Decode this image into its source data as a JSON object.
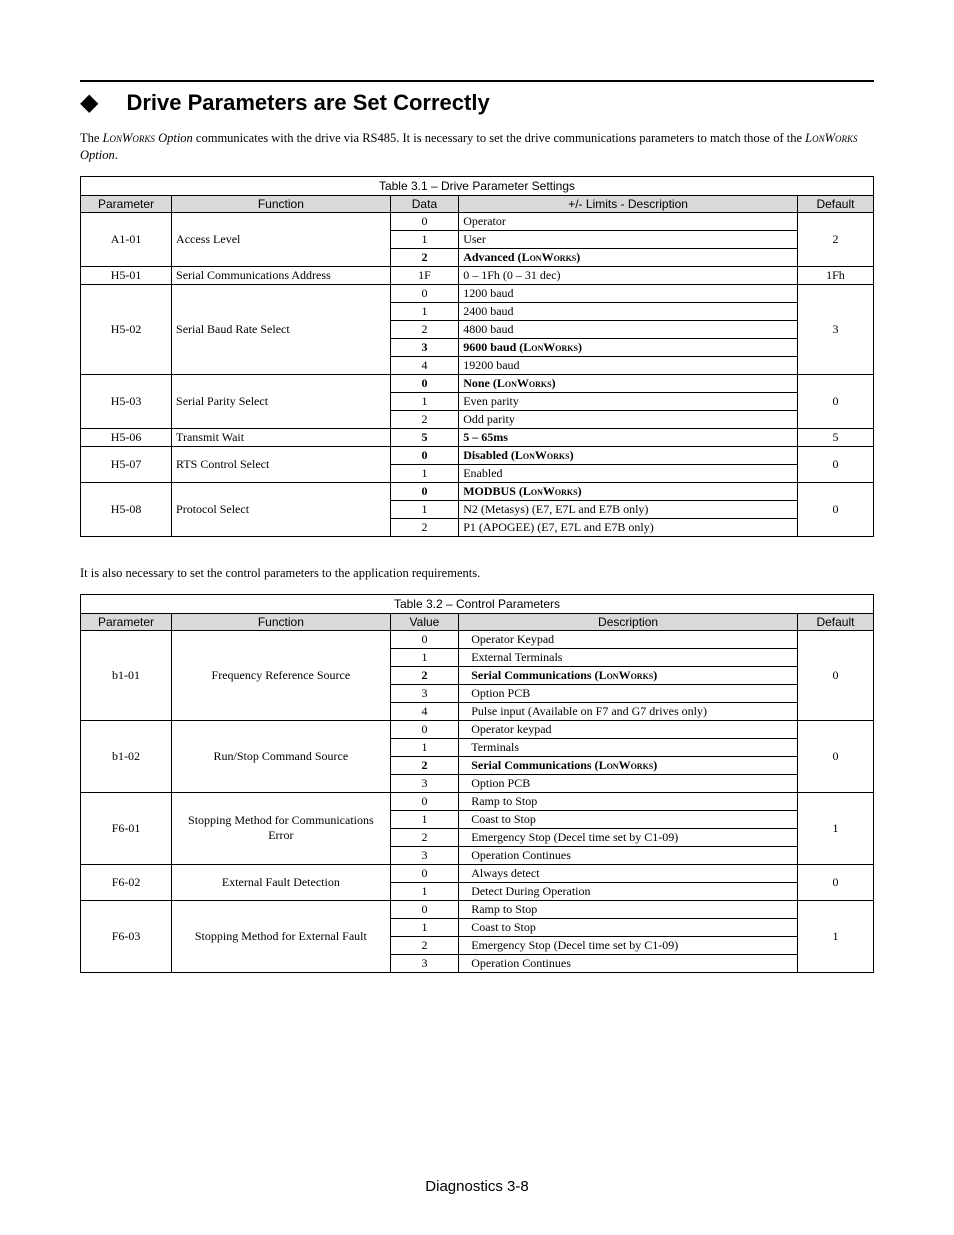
{
  "heading": "Drive Parameters are Set Correctly",
  "intro_pre": "The ",
  "intro_mid": " communicates with the drive via RS485. It is necessary to set the drive communications parameters to match those of the ",
  "intro_post": ".",
  "lonworks": "LonWorks",
  "option": " Option",
  "table1": {
    "caption": "Table 3.1 – Drive Parameter Settings",
    "headers": [
      "Parameter",
      "Function",
      "Data",
      "+/- Limits - Description",
      "Default"
    ],
    "rows": [
      {
        "param": "A1-01",
        "func": "Access Level",
        "default": "2",
        "items": [
          {
            "d": "0",
            "desc": "Operator",
            "b": false
          },
          {
            "d": "1",
            "desc": "User",
            "b": false
          },
          {
            "d": "2",
            "desc_html": "Advanced (<span class='lw'>LonWorks</span>)",
            "b": true
          }
        ]
      },
      {
        "param": "H5-01",
        "func": "Serial Communications Address",
        "default": "1Fh",
        "items": [
          {
            "d": "1F",
            "desc": "0 – 1Fh (0 – 31 dec)",
            "b": false
          }
        ]
      },
      {
        "param": "H5-02",
        "func": "Serial Baud Rate Select",
        "default": "3",
        "items": [
          {
            "d": "0",
            "desc": "1200 baud",
            "b": false
          },
          {
            "d": "1",
            "desc": "2400 baud",
            "b": false
          },
          {
            "d": "2",
            "desc": "4800 baud",
            "b": false
          },
          {
            "d": "3",
            "desc_html": "9600 baud (<span class='lw'>LonWorks</span>)",
            "b": true
          },
          {
            "d": "4",
            "desc": "19200 baud",
            "b": false
          }
        ]
      },
      {
        "param": "H5-03",
        "func": "Serial Parity Select",
        "default": "0",
        "items": [
          {
            "d": "0",
            "desc_html": "None (<span class='lw'>LonWorks</span>)",
            "b": true
          },
          {
            "d": "1",
            "desc": "Even parity",
            "b": false
          },
          {
            "d": "2",
            "desc": "Odd parity",
            "b": false
          }
        ]
      },
      {
        "param": "H5-06",
        "func": "Transmit Wait",
        "default": "5",
        "items": [
          {
            "d": "5",
            "desc": "5 – 65ms",
            "b": true,
            "d_bold": true
          }
        ]
      },
      {
        "param": "H5-07",
        "func": "RTS Control Select",
        "default": "0",
        "items": [
          {
            "d": "0",
            "desc_html": "Disabled (<span class='lw'>LonWorks</span>)",
            "b": true
          },
          {
            "d": "1",
            "desc": "Enabled",
            "b": false
          }
        ]
      },
      {
        "param": "H5-08",
        "func": "Protocol Select",
        "default": "0",
        "items": [
          {
            "d": "0",
            "desc_html": "MODBUS (<span class='lw'>LonWorks</span>)",
            "b": true
          },
          {
            "d": "1",
            "desc": "N2 (Metasys) (E7, E7L and E7B only)",
            "b": false
          },
          {
            "d": "2",
            "desc": "P1 (APOGEE) (E7, E7L and E7B only)",
            "b": false
          }
        ]
      }
    ]
  },
  "between": "It is also necessary to set the control parameters to the application requirements.",
  "table2": {
    "caption": "Table 3.2 – Control Parameters",
    "headers": [
      "Parameter",
      "Function",
      "Value",
      "Description",
      "Default"
    ],
    "func_align_center": true,
    "rows": [
      {
        "param": "b1-01",
        "func": "Frequency Reference Source",
        "default": "0",
        "items": [
          {
            "d": "0",
            "desc": "Operator Keypad",
            "b": false
          },
          {
            "d": "1",
            "desc": "External Terminals",
            "b": false
          },
          {
            "d": "2",
            "desc_html": "Serial Communications (<span class='lw'>LonWorks</span>)",
            "b": true
          },
          {
            "d": "3",
            "desc": "Option PCB",
            "b": false
          },
          {
            "d": "4",
            "desc": "Pulse input (Available on F7 and G7 drives only)",
            "b": false
          }
        ]
      },
      {
        "param": "b1-02",
        "func": "Run/Stop Command Source",
        "default": "0",
        "items": [
          {
            "d": "0",
            "desc": "Operator keypad",
            "b": false
          },
          {
            "d": "1",
            "desc": "Terminals",
            "b": false
          },
          {
            "d": "2",
            "desc_html": "Serial Communications (<span class='lw'>LonWorks</span>)",
            "b": true
          },
          {
            "d": "3",
            "desc": "Option PCB",
            "b": false
          }
        ]
      },
      {
        "param": "F6-01",
        "func": "Stopping Method for Communications Error",
        "default": "1",
        "items": [
          {
            "d": "0",
            "desc": "Ramp to Stop",
            "b": false
          },
          {
            "d": "1",
            "desc": "Coast to Stop",
            "b": false
          },
          {
            "d": "2",
            "desc": "Emergency Stop (Decel time set by C1-09)",
            "b": false
          },
          {
            "d": "3",
            "desc": "Operation Continues",
            "b": false
          }
        ]
      },
      {
        "param": "F6-02",
        "func": "External Fault Detection",
        "default": "0",
        "items": [
          {
            "d": "0",
            "desc": "Always detect",
            "b": false
          },
          {
            "d": "1",
            "desc": "Detect During Operation",
            "b": false
          }
        ]
      },
      {
        "param": "F6-03",
        "func": "Stopping Method for External Fault",
        "default": "1",
        "items": [
          {
            "d": "0",
            "desc": "Ramp to Stop",
            "b": false
          },
          {
            "d": "1",
            "desc": "Coast to Stop",
            "b": false
          },
          {
            "d": "2",
            "desc": "Emergency Stop (Decel time set by C1-09)",
            "b": false
          },
          {
            "d": "3",
            "desc": "Operation Continues",
            "b": false
          }
        ]
      }
    ]
  },
  "footer": "Diagnostics 3-8"
}
